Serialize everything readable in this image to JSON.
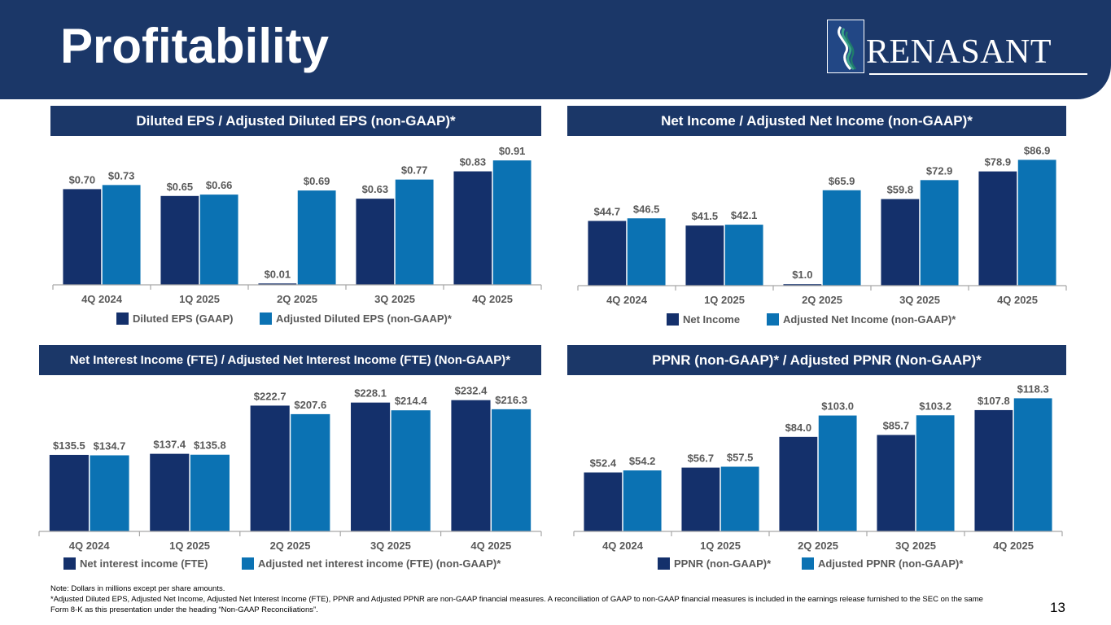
{
  "header": {
    "title": "Profitability",
    "logo_text": "RENASANT"
  },
  "colors": {
    "navy": "#1b3768",
    "series_primary": "#14306b",
    "series_secondary": "#0b72b3",
    "text_gray": "#595959"
  },
  "panels": [
    {
      "title": "Diluted EPS / Adjusted Diluted EPS (non-GAAP)*"
    },
    {
      "title": "Net Income / Adjusted Net Income (non-GAAP)*"
    },
    {
      "title": "Net Interest Income (FTE) / Adjusted Net Interest Income (FTE) (Non-GAAP)*"
    },
    {
      "title": "PPNR (non-GAAP)* / Adjusted PPNR (Non-GAAP)*"
    }
  ],
  "chart_data": [
    {
      "type": "bar",
      "title": "Diluted EPS / Adjusted Diluted EPS (non-GAAP)*",
      "categories": [
        "4Q 2024",
        "1Q 2025",
        "2Q 2025",
        "3Q 2025",
        "4Q 2025"
      ],
      "series": [
        {
          "name": "Diluted EPS (GAAP)",
          "values": [
            0.7,
            0.65,
            0.01,
            0.63,
            0.83
          ],
          "labels": [
            "$0.70",
            "$0.65",
            "$0.01",
            "$0.63",
            "$0.83"
          ]
        },
        {
          "name": "Adjusted Diluted EPS (non-GAAP)*",
          "values": [
            0.73,
            0.66,
            0.69,
            0.77,
            0.91
          ],
          "labels": [
            "$0.73",
            "$0.66",
            "$0.69",
            "$0.77",
            "$0.91"
          ]
        }
      ],
      "ylim": [
        0,
        1.0
      ],
      "grid": false,
      "legend": "bottom"
    },
    {
      "type": "bar",
      "title": "Net Income / Adjusted Net Income (non-GAAP)*",
      "categories": [
        "4Q 2024",
        "1Q 2025",
        "2Q 2025",
        "3Q 2025",
        "4Q 2025"
      ],
      "series": [
        {
          "name": "Net Income",
          "values": [
            44.7,
            41.5,
            1.0,
            59.8,
            78.9
          ],
          "labels": [
            "$44.7",
            "$41.5",
            "$1.0",
            "$59.8",
            "$78.9"
          ]
        },
        {
          "name": "Adjusted Net Income (non-GAAP)*",
          "values": [
            46.5,
            42.1,
            65.9,
            72.9,
            86.9
          ],
          "labels": [
            "$46.5",
            "$42.1",
            "$65.9",
            "$72.9",
            "$86.9"
          ]
        }
      ],
      "ylim": [
        0,
        95
      ],
      "grid": false,
      "legend": "bottom"
    },
    {
      "type": "bar",
      "title": "Net Interest Income (FTE) / Adjusted Net Interest Income (FTE) (Non-GAAP)*",
      "categories": [
        "4Q 2024",
        "1Q 2025",
        "2Q 2025",
        "3Q 2025",
        "4Q 2025"
      ],
      "series": [
        {
          "name": "Net interest income (FTE)",
          "values": [
            135.5,
            137.4,
            222.7,
            228.1,
            232.4
          ],
          "labels": [
            "$135.5",
            "$137.4",
            "$222.7",
            "$228.1",
            "$232.4"
          ]
        },
        {
          "name": "Adjusted net interest income (FTE) (non-GAAP)*",
          "values": [
            134.7,
            135.8,
            207.6,
            214.4,
            216.3
          ],
          "labels": [
            "$134.7",
            "$135.8",
            "$207.6",
            "$214.4",
            "$216.3"
          ]
        }
      ],
      "ylim": [
        0,
        255
      ],
      "grid": false,
      "legend": "bottom"
    },
    {
      "type": "bar",
      "title": "PPNR (non-GAAP)* / Adjusted PPNR (Non-GAAP)*",
      "categories": [
        "4Q 2024",
        "1Q 2025",
        "2Q 2025",
        "3Q 2025",
        "4Q 2025"
      ],
      "series": [
        {
          "name": "PPNR (non-GAAP)*",
          "values": [
            52.4,
            56.7,
            84.0,
            85.7,
            107.8
          ],
          "labels": [
            "$52.4",
            "$56.7",
            "$84.0",
            "$85.7",
            "$107.8"
          ]
        },
        {
          "name": "Adjusted PPNR (non-GAAP)*",
          "values": [
            54.2,
            57.5,
            103.0,
            103.2,
            118.3
          ],
          "labels": [
            "$54.2",
            "$57.5",
            "$103.0",
            "$103.2",
            "$118.3"
          ]
        }
      ],
      "ylim": [
        0,
        128
      ],
      "grid": false,
      "legend": "bottom"
    }
  ],
  "footer": {
    "note_line1": "Note: Dollars in millions except per share amounts.",
    "note_line2": "*Adjusted Diluted EPS, Adjusted Net Income, Adjusted Net Interest Income (FTE), PPNR and Adjusted PPNR are non-GAAP financial measures. A reconciliation of GAAP to non-GAAP financial measures is included in the earnings release furnished to the SEC on the same Form 8-K as this presentation under the heading “Non-GAAP Reconciliations”.",
    "page_number": "13"
  }
}
